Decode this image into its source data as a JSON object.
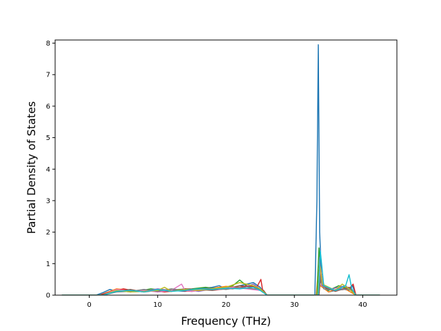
{
  "chart_data": {
    "type": "line",
    "title": "",
    "xlabel": "Frequency (THz)",
    "ylabel": "Partial Density of States",
    "xlim": [
      -5,
      45
    ],
    "ylim": [
      0,
      8.1
    ],
    "xticks": [
      0,
      10,
      20,
      30,
      40
    ],
    "yticks": [
      0,
      1,
      2,
      3,
      4,
      5,
      6,
      7,
      8
    ],
    "grid": false,
    "legend": "none",
    "series": [
      {
        "color": "#1f77b4",
        "x": [
          -4,
          1,
          2,
          3,
          4,
          5,
          6,
          8,
          10,
          12,
          14,
          16,
          18,
          19,
          20,
          22,
          24,
          25,
          25.5,
          26,
          33,
          33.3,
          33.5,
          33.7,
          34,
          35,
          37,
          38,
          38.5,
          39,
          42.5
        ],
        "y": [
          0,
          0,
          0.08,
          0.18,
          0.12,
          0.15,
          0.1,
          0.18,
          0.1,
          0.15,
          0.12,
          0.2,
          0.25,
          0.3,
          0.2,
          0.3,
          0.4,
          0.25,
          0.1,
          0,
          0,
          3.0,
          7.95,
          2.0,
          0.4,
          0.1,
          0.2,
          0.15,
          0.3,
          0,
          0
        ]
      },
      {
        "color": "#ff7f0e",
        "x": [
          -4,
          1.5,
          3,
          4,
          6,
          8,
          10,
          12,
          14,
          16,
          18,
          20,
          22,
          24,
          25.3,
          26,
          33.2,
          33.5,
          33.8,
          35,
          37,
          39,
          42.5
        ],
        "y": [
          0,
          0,
          0.12,
          0.2,
          0.15,
          0.1,
          0.18,
          0.12,
          0.2,
          0.15,
          0.22,
          0.28,
          0.25,
          0.3,
          0.15,
          0,
          0,
          0.8,
          0.3,
          0.1,
          0.25,
          0,
          0
        ]
      },
      {
        "color": "#2ca02c",
        "x": [
          -4,
          1.5,
          3,
          5,
          7,
          9,
          11,
          13,
          15,
          17,
          19,
          21,
          22,
          23,
          25,
          26,
          33.3,
          33.6,
          33.9,
          35,
          36.5,
          38,
          39,
          42.5
        ],
        "y": [
          0,
          0,
          0.1,
          0.15,
          0.12,
          0.2,
          0.15,
          0.18,
          0.2,
          0.25,
          0.2,
          0.3,
          0.48,
          0.3,
          0.2,
          0,
          0,
          1.5,
          0.4,
          0.15,
          0.3,
          0.2,
          0,
          0
        ]
      },
      {
        "color": "#d62728",
        "x": [
          -4,
          1.5,
          3,
          5,
          7,
          9,
          11,
          13,
          15,
          17,
          19,
          21,
          23,
          24.5,
          25.1,
          25.4,
          26,
          33.4,
          33.8,
          34.2,
          36,
          38,
          38.6,
          39,
          42.5
        ],
        "y": [
          0,
          0,
          0.1,
          0.2,
          0.12,
          0.15,
          0.1,
          0.15,
          0.12,
          0.18,
          0.22,
          0.2,
          0.3,
          0.25,
          0.5,
          0.1,
          0,
          0,
          0.9,
          0.3,
          0.15,
          0.2,
          0.35,
          0,
          0
        ]
      },
      {
        "color": "#9467bd",
        "x": [
          -4,
          2,
          4,
          6,
          8,
          10,
          12,
          14,
          16,
          18,
          20,
          22,
          24,
          25,
          26,
          33.5,
          33.7,
          34,
          35.5,
          37.5,
          39,
          42.5
        ],
        "y": [
          0,
          0,
          0.15,
          0.1,
          0.12,
          0.2,
          0.15,
          0.18,
          0.12,
          0.2,
          0.25,
          0.2,
          0.35,
          0.2,
          0,
          0,
          1.2,
          0.3,
          0.2,
          0.3,
          0,
          0
        ]
      },
      {
        "color": "#8c564b",
        "x": [
          -4,
          2,
          4,
          6,
          8,
          10,
          12,
          14,
          16,
          18,
          20,
          22,
          24,
          25.5,
          26,
          33.6,
          33.9,
          34.4,
          36,
          38,
          39,
          42.5
        ],
        "y": [
          0,
          0,
          0.12,
          0.18,
          0.1,
          0.15,
          0.12,
          0.2,
          0.18,
          0.15,
          0.2,
          0.3,
          0.25,
          0.15,
          0,
          0,
          0.7,
          0.25,
          0.12,
          0.25,
          0,
          0
        ]
      },
      {
        "color": "#e377c2",
        "x": [
          -4,
          2,
          4,
          6,
          8,
          10,
          12,
          13.5,
          14,
          15,
          17,
          19,
          21,
          23,
          25,
          26,
          33.5,
          33.8,
          34.2,
          36,
          38,
          39,
          42.5
        ],
        "y": [
          0,
          0,
          0.18,
          0.12,
          0.15,
          0.1,
          0.15,
          0.35,
          0.15,
          0.12,
          0.2,
          0.18,
          0.25,
          0.2,
          0.15,
          0,
          0,
          0.9,
          0.3,
          0.15,
          0.2,
          0,
          0
        ]
      },
      {
        "color": "#7f7f7f",
        "x": [
          -4,
          2,
          4,
          6,
          8,
          10,
          12,
          14,
          16,
          18,
          20,
          22,
          24,
          25,
          26,
          33.5,
          33.8,
          34.3,
          36,
          38,
          39,
          42.5
        ],
        "y": [
          0,
          0,
          0.1,
          0.12,
          0.18,
          0.12,
          0.2,
          0.15,
          0.2,
          0.22,
          0.18,
          0.25,
          0.2,
          0.18,
          0,
          0,
          0.6,
          0.2,
          0.15,
          0.2,
          0,
          0
        ]
      },
      {
        "color": "#bcbd22",
        "x": [
          -4,
          2,
          4,
          6,
          8,
          10,
          11,
          12,
          14,
          16,
          18,
          20,
          22,
          24,
          25,
          26,
          33.4,
          33.7,
          34.1,
          36,
          37,
          38,
          39,
          42.5
        ],
        "y": [
          0,
          0,
          0.15,
          0.1,
          0.12,
          0.15,
          0.25,
          0.12,
          0.18,
          0.15,
          0.2,
          0.25,
          0.4,
          0.3,
          0.2,
          0,
          0,
          1.0,
          0.35,
          0.15,
          0.35,
          0.2,
          0,
          0
        ]
      },
      {
        "color": "#17becf",
        "x": [
          -4,
          2,
          4,
          6,
          8,
          10,
          12,
          14,
          16,
          18,
          20,
          22,
          24,
          25,
          26,
          33.5,
          33.8,
          34.3,
          36,
          37.5,
          38,
          38.4,
          39,
          42.5
        ],
        "y": [
          0,
          0,
          0.12,
          0.15,
          0.1,
          0.18,
          0.12,
          0.15,
          0.2,
          0.18,
          0.22,
          0.2,
          0.25,
          0.15,
          0,
          0,
          1.4,
          0.3,
          0.15,
          0.3,
          0.65,
          0.2,
          0,
          0
        ]
      }
    ]
  }
}
